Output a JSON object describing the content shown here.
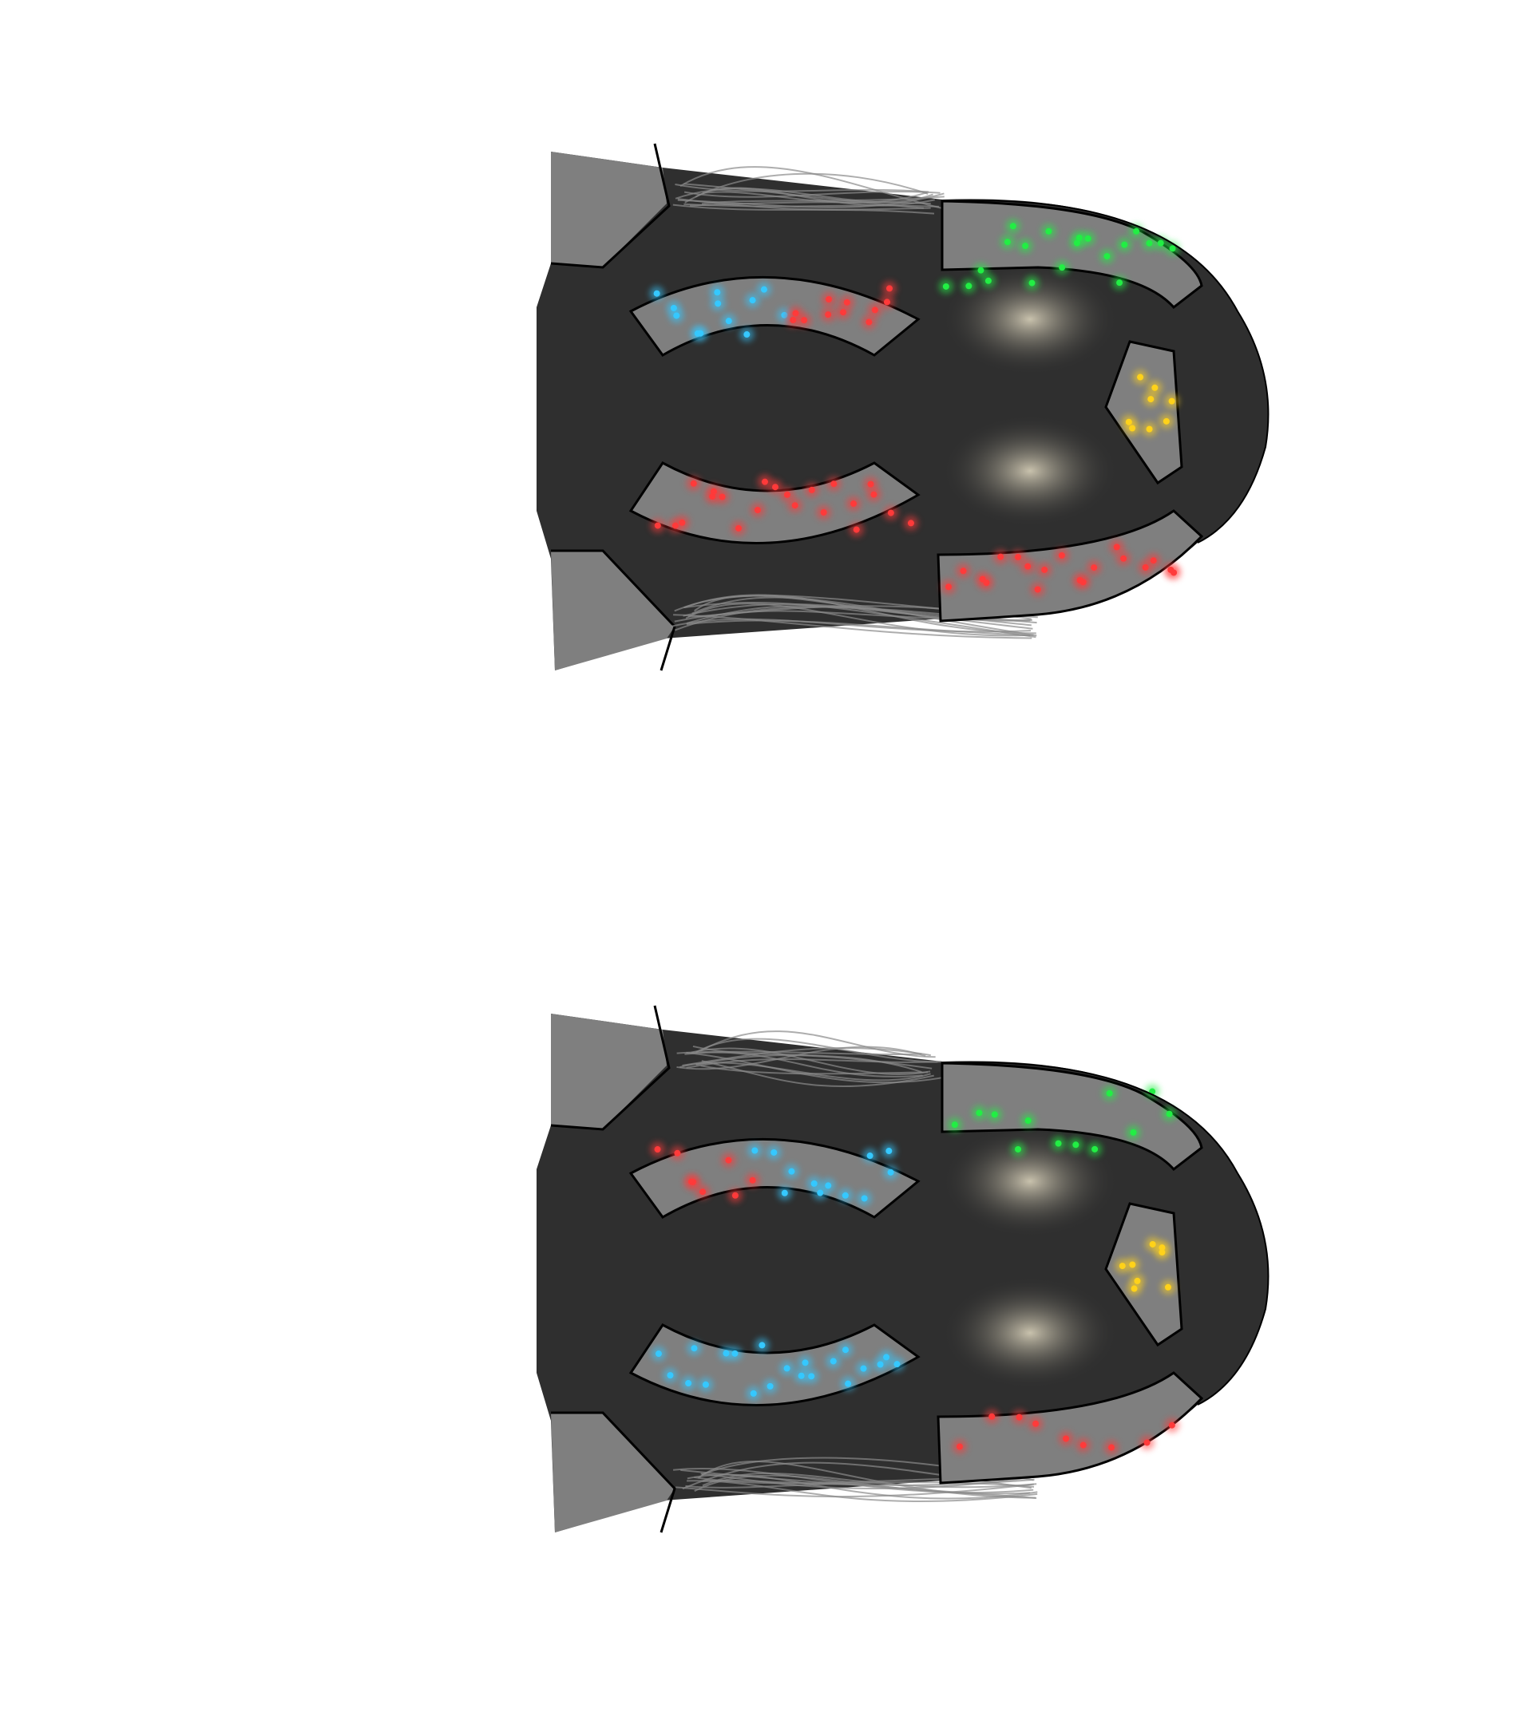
{
  "colors": {
    "background": "#ffffff",
    "cap_body": "#2f2f2f",
    "panel": "#7f7f7f",
    "outline": "#000000",
    "bulb_glow": "#c9c2ad",
    "wire": "#8a8a8a",
    "led_cyan": "#35c8ff",
    "led_red": "#ff3a3a",
    "led_green": "#22ee44",
    "led_yellow": "#ffd21a"
  },
  "diagram": {
    "description_type": "dual LED cap panel layout",
    "panels": [
      {
        "id": "top",
        "zones": {
          "front_upper_arc": {
            "leds": [
              [
                "cyan",
                12
              ],
              [
                "red",
                11
              ]
            ]
          },
          "front_lower_arc": {
            "leds": [
              [
                "red",
                22
              ]
            ]
          },
          "back_upper_band": {
            "leds": [
              [
                "green",
                20
              ]
            ]
          },
          "back_lower_band": {
            "leds": [
              [
                "red",
                19
              ]
            ]
          },
          "crown_plate": {
            "leds": [
              [
                "yellow",
                8
              ]
            ]
          }
        }
      },
      {
        "id": "bottom",
        "zones": {
          "front_upper_arc": {
            "leds": [
              [
                "red",
                8
              ],
              [
                "cyan",
                12
              ]
            ]
          },
          "front_lower_arc": {
            "leds": [
              [
                "cyan",
                21
              ]
            ]
          },
          "back_upper_band": {
            "leds": [
              [
                "green",
                12
              ]
            ]
          },
          "back_lower_band": {
            "leds": [
              [
                "red",
                9
              ]
            ]
          },
          "crown_plate": {
            "leds": [
              [
                "yellow",
                8
              ]
            ]
          }
        }
      }
    ]
  }
}
